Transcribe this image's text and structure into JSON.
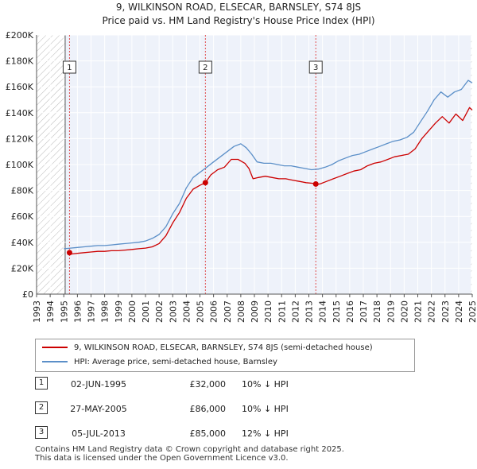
{
  "chart_data": {
    "type": "line",
    "title": "9, WILKINSON ROAD, ELSECAR, BARNSLEY, S74 8JS",
    "subtitle": "Price paid vs. HM Land Registry's House Price Index (HPI)",
    "xlim": [
      1993,
      2025
    ],
    "ylim": [
      0,
      200000
    ],
    "x_ticks": [
      "1993",
      "1994",
      "1995",
      "1996",
      "1997",
      "1998",
      "1999",
      "2000",
      "2001",
      "2002",
      "2003",
      "2004",
      "2005",
      "2006",
      "2007",
      "2008",
      "2009",
      "2010",
      "2011",
      "2012",
      "2013",
      "2014",
      "2015",
      "2016",
      "2017",
      "2018",
      "2019",
      "2020",
      "2021",
      "2022",
      "2023",
      "2024",
      "2025"
    ],
    "y_ticks": [
      0,
      20000,
      40000,
      60000,
      80000,
      100000,
      120000,
      140000,
      160000,
      180000,
      200000
    ],
    "y_tick_labels": [
      "£0",
      "£20K",
      "£40K",
      "£60K",
      "£80K",
      "£100K",
      "£120K",
      "£140K",
      "£160K",
      "£180K",
      "£200K"
    ],
    "shaded_periods": [
      [
        1993,
        1995.1
      ],
      [
        2024.9,
        2025
      ]
    ],
    "grid": true,
    "series": [
      {
        "name": "9, WILKINSON ROAD, ELSECAR, BARNSLEY, S74 8JS (semi-detached house)",
        "color": "#cc0000",
        "x": [
          1995.42,
          1995.6,
          1996.0,
          1996.5,
          1997.0,
          1997.5,
          1998.0,
          1998.5,
          1999.0,
          1999.5,
          2000.0,
          2000.5,
          2001.0,
          2001.5,
          2002.0,
          2002.5,
          2003.0,
          2003.5,
          2004.0,
          2004.5,
          2005.0,
          2005.4,
          2005.8,
          2006.3,
          2006.8,
          2007.3,
          2007.8,
          2008.3,
          2008.6,
          2008.9,
          2009.3,
          2009.8,
          2010.3,
          2010.8,
          2011.3,
          2011.8,
          2012.3,
          2012.8,
          2013.3,
          2013.51,
          2013.8,
          2014.3,
          2014.8,
          2015.3,
          2015.8,
          2016.3,
          2016.8,
          2017.3,
          2017.8,
          2018.3,
          2018.8,
          2019.3,
          2019.8,
          2020.3,
          2020.8,
          2021.3,
          2021.8,
          2022.3,
          2022.8,
          2023.3,
          2023.8,
          2024.3,
          2024.8,
          2025.0
        ],
        "values": [
          32000,
          31000,
          31500,
          32000,
          32500,
          33000,
          33000,
          33500,
          33500,
          34000,
          34500,
          35000,
          35500,
          36500,
          39000,
          45000,
          55000,
          63000,
          74000,
          81000,
          84000,
          86000,
          92000,
          96000,
          98000,
          104000,
          104000,
          101000,
          97000,
          89000,
          90000,
          91000,
          90000,
          89000,
          89000,
          88000,
          87000,
          86000,
          85500,
          85000,
          85000,
          87000,
          89000,
          91000,
          93000,
          95000,
          96000,
          99000,
          101000,
          102000,
          104000,
          106000,
          107000,
          108000,
          112000,
          120000,
          126000,
          132000,
          137000,
          132000,
          139000,
          134000,
          144000,
          142000
        ]
      },
      {
        "name": "HPI: Average price, semi-detached house, Barnsley",
        "color": "#5b8fc8",
        "x": [
          1995.0,
          1995.5,
          1996.0,
          1996.5,
          1997.0,
          1997.5,
          1998.0,
          1998.5,
          1999.0,
          1999.5,
          2000.0,
          2000.5,
          2001.0,
          2001.5,
          2002.0,
          2002.5,
          2003.0,
          2003.5,
          2004.0,
          2004.5,
          2005.0,
          2005.5,
          2006.0,
          2006.5,
          2007.0,
          2007.5,
          2008.0,
          2008.4,
          2008.8,
          2009.2,
          2009.7,
          2010.2,
          2010.7,
          2011.2,
          2011.7,
          2012.2,
          2012.7,
          2013.2,
          2013.7,
          2014.2,
          2014.7,
          2015.2,
          2015.7,
          2016.2,
          2016.7,
          2017.2,
          2017.7,
          2018.2,
          2018.7,
          2019.2,
          2019.7,
          2020.2,
          2020.7,
          2021.2,
          2021.7,
          2022.2,
          2022.7,
          2023.2,
          2023.7,
          2024.2,
          2024.7,
          2025.0
        ],
        "values": [
          35000,
          35500,
          36000,
          36500,
          37000,
          37500,
          37500,
          38000,
          38500,
          39000,
          39500,
          40000,
          41000,
          43000,
          46000,
          52000,
          62000,
          70000,
          82000,
          90000,
          94000,
          98000,
          102000,
          106000,
          110000,
          114000,
          116000,
          113000,
          108000,
          102000,
          101000,
          101000,
          100000,
          99000,
          99000,
          98000,
          97000,
          96000,
          96500,
          98000,
          100000,
          103000,
          105000,
          107000,
          108000,
          110000,
          112000,
          114000,
          116000,
          118000,
          119000,
          121000,
          125000,
          133000,
          141000,
          150000,
          156000,
          152000,
          156000,
          158000,
          165000,
          163000
        ]
      }
    ],
    "sales": [
      {
        "label": "1",
        "x": 1995.42,
        "value": 32000
      },
      {
        "label": "2",
        "x": 2005.4,
        "value": 86000
      },
      {
        "label": "3",
        "x": 2013.51,
        "value": 85000
      }
    ]
  },
  "legend": {
    "property_label": "9, WILKINSON ROAD, ELSECAR, BARNSLEY, S74 8JS (semi-detached house)",
    "hpi_label": "HPI: Average price, semi-detached house, Barnsley"
  },
  "transactions": [
    {
      "num": "1",
      "date": "02-JUN-1995",
      "price": "£32,000",
      "hpi": "10% ↓ HPI"
    },
    {
      "num": "2",
      "date": "27-MAY-2005",
      "price": "£86,000",
      "hpi": "10% ↓ HPI"
    },
    {
      "num": "3",
      "date": "05-JUL-2013",
      "price": "£85,000",
      "hpi": "12% ↓ HPI"
    }
  ],
  "footer": {
    "line1": "Contains HM Land Registry data © Crown copyright and database right 2025.",
    "line2": "This data is licensed under the Open Government Licence v3.0."
  }
}
